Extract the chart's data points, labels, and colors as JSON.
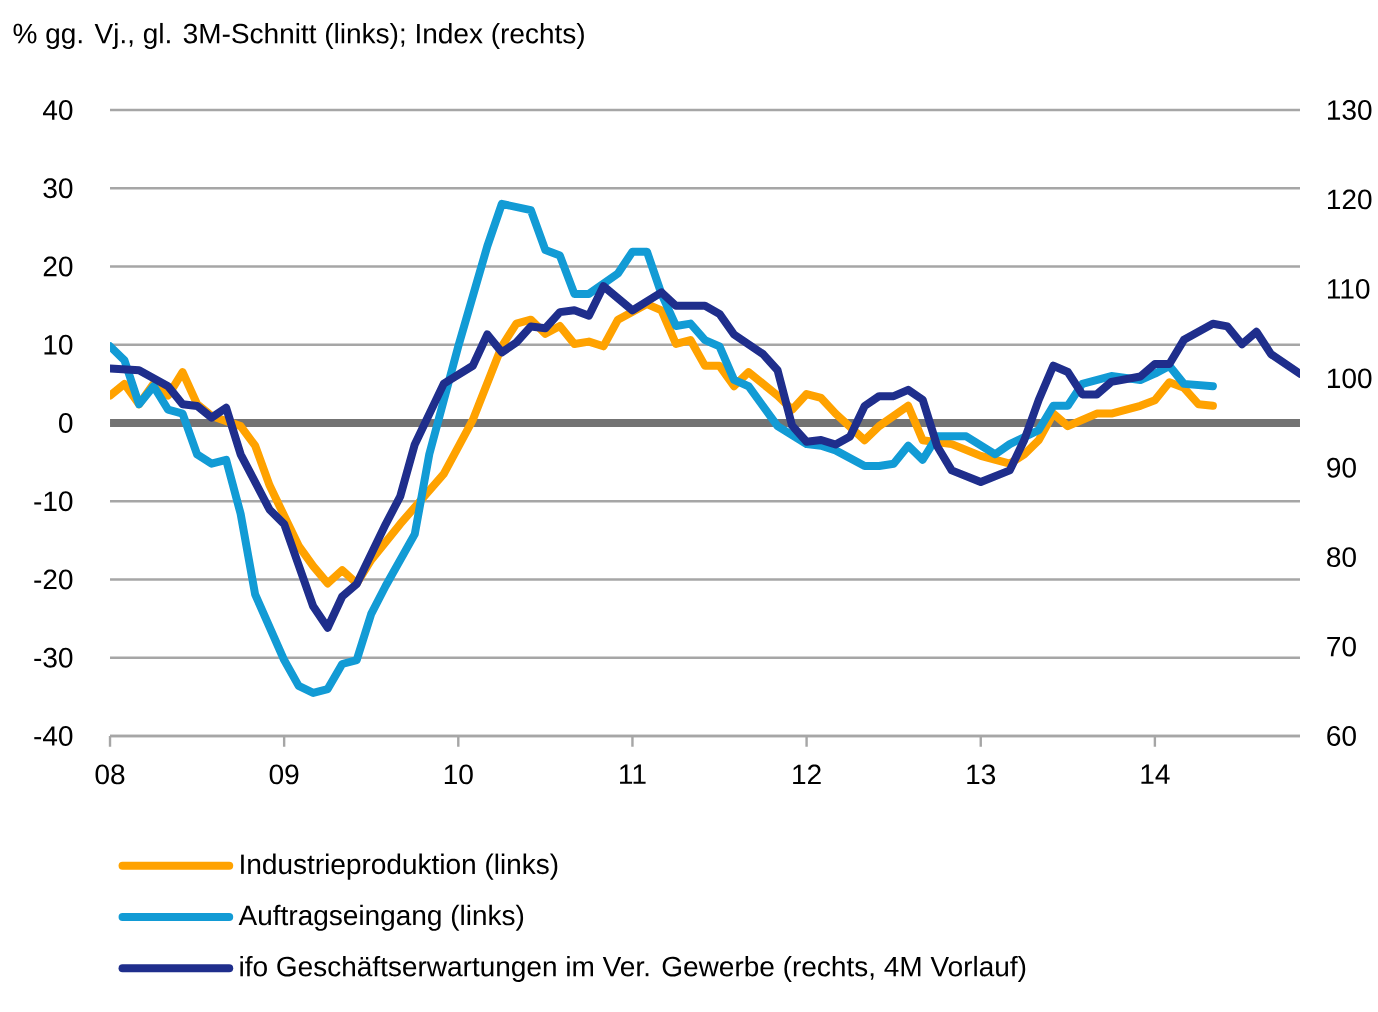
{
  "chart_data": {
    "type": "line",
    "ylabel": "% gg. Vj., gl. 3M-Schnitt (links); Index (rechts)",
    "xlim": [
      "2008-01",
      "2014-11"
    ],
    "xticks": [
      {
        "value": "2008-01",
        "label": "08"
      },
      {
        "value": "2009-01",
        "label": "09"
      },
      {
        "value": "2010-01",
        "label": "10"
      },
      {
        "value": "2011-01",
        "label": "11"
      },
      {
        "value": "2012-01",
        "label": "12"
      },
      {
        "value": "2013-01",
        "label": "13"
      },
      {
        "value": "2014-01",
        "label": "14"
      }
    ],
    "ylim": [
      -40,
      40
    ],
    "yticks": [
      -40,
      -30,
      -20,
      -10,
      0,
      10,
      20,
      30,
      40
    ],
    "y2lim": [
      60,
      130
    ],
    "y2ticks": [
      60,
      70,
      80,
      90,
      100,
      110,
      120,
      130
    ],
    "grid": "y",
    "legend": "bottom",
    "marker": "none",
    "line_style": "solid",
    "ref_lines": [
      {
        "axis": "y",
        "value": 0,
        "color": "#737373"
      }
    ],
    "series": [
      {
        "name": "Industrieproduktion (links)",
        "color": "#ffa200",
        "x": [
          "2008-01",
          "2008-02",
          "2008-03",
          "2008-04",
          "2008-05",
          "2008-06",
          "2008-07",
          "2008-08",
          "2008-10",
          "2008-11",
          "2008-12",
          "2009-02",
          "2009-03",
          "2009-04",
          "2009-05",
          "2009-06",
          "2009-07",
          "2009-09",
          "2009-12",
          "2010-02",
          "2010-04",
          "2010-05",
          "2010-06",
          "2010-07",
          "2010-08",
          "2010-09",
          "2010-10",
          "2010-11",
          "2010-12",
          "2011-02",
          "2011-03",
          "2011-04",
          "2011-05",
          "2011-06",
          "2011-07",
          "2011-08",
          "2011-09",
          "2011-11",
          "2011-12",
          "2012-01",
          "2012-02",
          "2012-03",
          "2012-05",
          "2012-06",
          "2012-07",
          "2012-08",
          "2012-09",
          "2012-11",
          "2013-01",
          "2013-03",
          "2013-04",
          "2013-05",
          "2013-06",
          "2013-07",
          "2013-08",
          "2013-09",
          "2013-10",
          "2013-12",
          "2014-01",
          "2014-02",
          "2014-03",
          "2014-04",
          "2014-05"
        ],
        "values": [
          3.5,
          5,
          2.4,
          5,
          3.5,
          6.5,
          2.4,
          0.9,
          -0.4,
          -2.9,
          -8,
          -15.7,
          -18.3,
          -20.5,
          -18.8,
          -20.5,
          -17.5,
          -12.9,
          -6.5,
          0.4,
          9.8,
          12.7,
          13.2,
          11.4,
          12.4,
          10.1,
          10.4,
          9.8,
          13.2,
          15.2,
          14.4,
          10.1,
          10.6,
          7.3,
          7.3,
          4.7,
          6.5,
          3.5,
          1.7,
          3.7,
          3.2,
          1.2,
          -2.2,
          -0.4,
          0.9,
          2.2,
          -2.2,
          -2.7,
          -4.2,
          -5.2,
          -4,
          -2.2,
          1.2,
          -0.4,
          0.4,
          1.2,
          1.2,
          2.2,
          2.9,
          5.2,
          4.5,
          2.4,
          2.2
        ]
      },
      {
        "name": "Auftragseingang (links)",
        "color": "#129bd5",
        "x": [
          "2008-01",
          "2008-02",
          "2008-03",
          "2008-04",
          "2008-05",
          "2008-06",
          "2008-07",
          "2008-08",
          "2008-09",
          "2008-10",
          "2008-11",
          "2009-01",
          "2009-02",
          "2009-03",
          "2009-04",
          "2009-05",
          "2009-06",
          "2009-07",
          "2009-08",
          "2009-10",
          "2009-11",
          "2010-01",
          "2010-03",
          "2010-04",
          "2010-06",
          "2010-07",
          "2010-08",
          "2010-09",
          "2010-10",
          "2010-12",
          "2011-01",
          "2011-02",
          "2011-03",
          "2011-04",
          "2011-05",
          "2011-06",
          "2011-07",
          "2011-08",
          "2011-09",
          "2011-11",
          "2012-01",
          "2012-02",
          "2012-03",
          "2012-05",
          "2012-06",
          "2012-07",
          "2012-08",
          "2012-09",
          "2012-10",
          "2012-12",
          "2013-02",
          "2013-03",
          "2013-05",
          "2013-06",
          "2013-07",
          "2013-08",
          "2013-10",
          "2013-12",
          "2014-01",
          "2014-02",
          "2014-03",
          "2014-05"
        ],
        "values": [
          9.8,
          8,
          2.4,
          4.7,
          1.7,
          1.2,
          -4,
          -5.2,
          -4.7,
          -11.6,
          -21.9,
          -30.3,
          -33.6,
          -34.5,
          -34,
          -30.8,
          -30.3,
          -24.4,
          -20.8,
          -14.2,
          -4,
          9.8,
          22.6,
          28,
          27.2,
          22.1,
          21.4,
          16.5,
          16.5,
          19.1,
          21.9,
          21.9,
          16.5,
          12.4,
          12.7,
          10.6,
          9.8,
          5.5,
          4.7,
          -0.4,
          -2.7,
          -2.9,
          -3.5,
          -5.5,
          -5.5,
          -5.2,
          -2.9,
          -4.7,
          -1.7,
          -1.7,
          -4,
          -2.7,
          -0.9,
          2.2,
          2.2,
          5,
          6,
          5.5,
          6.3,
          7.3,
          5,
          4.7
        ]
      },
      {
        "name": "ifo Geschäftserwartungen im Ver. Gewerbe (rechts, 4M Vorlauf)",
        "color": "#1f2e8c",
        "axis": "y2",
        "x": [
          "2008-01",
          "2008-03",
          "2008-04",
          "2008-05",
          "2008-06",
          "2008-07",
          "2008-08",
          "2008-09",
          "2008-10",
          "2008-12",
          "2009-01",
          "2009-03",
          "2009-04",
          "2009-05",
          "2009-06",
          "2009-08",
          "2009-09",
          "2009-10",
          "2009-12",
          "2010-02",
          "2010-03",
          "2010-04",
          "2010-05",
          "2010-06",
          "2010-07",
          "2010-08",
          "2010-09",
          "2010-10",
          "2010-11",
          "2011-01",
          "2011-03",
          "2011-04",
          "2011-06",
          "2011-07",
          "2011-08",
          "2011-09",
          "2011-10",
          "2011-11",
          "2011-12",
          "2012-01",
          "2012-02",
          "2012-03",
          "2012-04",
          "2012-05",
          "2012-06",
          "2012-07",
          "2012-08",
          "2012-09",
          "2012-10",
          "2012-11",
          "2013-01",
          "2013-03",
          "2013-04",
          "2013-05",
          "2013-06",
          "2013-07",
          "2013-08",
          "2013-09",
          "2013-10",
          "2013-12",
          "2014-01",
          "2014-02",
          "2014-03",
          "2014-04",
          "2014-05",
          "2014-06",
          "2014-07",
          "2014-08",
          "2014-09",
          "2014-11"
        ],
        "values": [
          101.1,
          100.9,
          100,
          99.1,
          97.1,
          96.9,
          95.6,
          96.7,
          91.5,
          85.3,
          83.7,
          74.5,
          72.1,
          75.6,
          77,
          83.7,
          86.8,
          92.6,
          99.4,
          101.4,
          104.9,
          102.9,
          104,
          105.8,
          105.6,
          107.4,
          107.6,
          107,
          110.3,
          107.6,
          109.6,
          108.1,
          108.1,
          107.2,
          104.9,
          103.8,
          102.7,
          100.9,
          94.7,
          92.9,
          93.1,
          92.6,
          93.5,
          96.9,
          98,
          98,
          98.7,
          97.6,
          92.4,
          89.7,
          88.4,
          89.7,
          93.1,
          97.6,
          101.4,
          100.7,
          98.2,
          98.2,
          99.6,
          100.2,
          101.6,
          101.6,
          104.3,
          105.2,
          106.1,
          105.8,
          103.8,
          105.2,
          102.7,
          100.5
        ]
      }
    ]
  }
}
